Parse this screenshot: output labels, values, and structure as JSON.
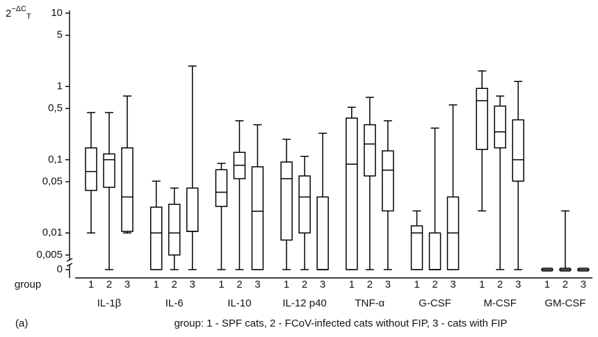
{
  "chart_data": {
    "type": "box",
    "y_label": {
      "base": "2",
      "exponent": "−ΔC",
      "subscript": "T"
    },
    "log_scale": true,
    "ylim": [
      0.005,
      10
    ],
    "yticks": [
      {
        "value": 0.005,
        "label": "0,005"
      },
      {
        "value": 0.01,
        "label": "0,01"
      },
      {
        "value": 0.05,
        "label": "0,05"
      },
      {
        "value": 0.1,
        "label": "0,1"
      },
      {
        "value": 0.5,
        "label": "0,5"
      },
      1,
      5,
      10
    ],
    "zero_tick": {
      "value": 0,
      "label": "0"
    },
    "group_axis_label": "group",
    "group_labels": [
      "1",
      "2",
      "3"
    ],
    "categories": [
      "IL-1β",
      "IL-6",
      "IL-10",
      "IL-12 p40",
      "TNF-α",
      "G-CSF",
      "M-CSF",
      "GM-CSF"
    ],
    "color": "#000000",
    "boxes": [
      [
        {
          "min": 0.01,
          "q1": 0.038,
          "median": 0.069,
          "q3": 0.145,
          "max": 0.44
        },
        {
          "min": 0,
          "q1": 0.042,
          "median": 0.1,
          "q3": 0.12,
          "max": 0.44
        },
        {
          "min": 0.01,
          "q1": 0.0105,
          "median": 0.031,
          "q3": 0.145,
          "max": 0.74
        }
      ],
      [
        {
          "min": 0,
          "q1": 0,
          "median": 0.01,
          "q3": 0.0225,
          "max": 0.051
        },
        {
          "min": 0,
          "q1": 0.005,
          "median": 0.01,
          "q3": 0.0246,
          "max": 0.041
        },
        {
          "min": 0,
          "q1": 0.0105,
          "median": 0.0105,
          "q3": 0.041,
          "max": 1.9
        }
      ],
      [
        {
          "min": 0,
          "q1": 0.023,
          "median": 0.036,
          "q3": 0.073,
          "max": 0.089
        },
        {
          "min": 0,
          "q1": 0.055,
          "median": 0.084,
          "q3": 0.126,
          "max": 0.34
        },
        {
          "min": 0,
          "q1": 0,
          "median": 0.0198,
          "q3": 0.08,
          "max": 0.3
        }
      ],
      [
        {
          "min": 0,
          "q1": 0.008,
          "median": 0.055,
          "q3": 0.093,
          "max": 0.19
        },
        {
          "min": 0,
          "q1": 0.01,
          "median": 0.031,
          "q3": 0.06,
          "max": 0.111
        },
        {
          "min": 0,
          "q1": 0,
          "median": 0,
          "q3": 0.031,
          "max": 0.23
        }
      ],
      [
        {
          "min": 0,
          "q1": 0,
          "median": 0.087,
          "q3": 0.37,
          "max": 0.52
        },
        {
          "min": 0,
          "q1": 0.06,
          "median": 0.164,
          "q3": 0.3,
          "max": 0.71
        },
        {
          "min": 0,
          "q1": 0.02,
          "median": 0.072,
          "q3": 0.132,
          "max": 0.34
        }
      ],
      [
        {
          "min": 0,
          "q1": 0,
          "median": 0.01,
          "q3": 0.0125,
          "max": 0.02
        },
        {
          "min": 0,
          "q1": 0,
          "median": 0,
          "q3": 0.01,
          "max": 0.27
        },
        {
          "min": 0,
          "q1": 0,
          "median": 0.01,
          "q3": 0.031,
          "max": 0.56
        }
      ],
      [
        {
          "min": 0.02,
          "q1": 0.138,
          "median": 0.64,
          "q3": 0.94,
          "max": 1.63
        },
        {
          "min": 0,
          "q1": 0.145,
          "median": 0.24,
          "q3": 0.54,
          "max": 0.74
        },
        {
          "min": 0,
          "q1": 0.051,
          "median": 0.1,
          "q3": 0.35,
          "max": 1.17
        }
      ],
      [
        {
          "min": 0,
          "q1": 0,
          "median": 0,
          "q3": 0,
          "max": 0
        },
        {
          "min": 0,
          "q1": 0,
          "median": 0,
          "q3": 0,
          "max": 0.02
        },
        {
          "min": 0,
          "q1": 0,
          "median": 0,
          "q3": 0,
          "max": 0
        }
      ]
    ],
    "panel_label": "(a)",
    "caption": "group: 1 - SPF cats, 2 - FCoV-infected cats without FIP, 3 - cats with FIP"
  }
}
